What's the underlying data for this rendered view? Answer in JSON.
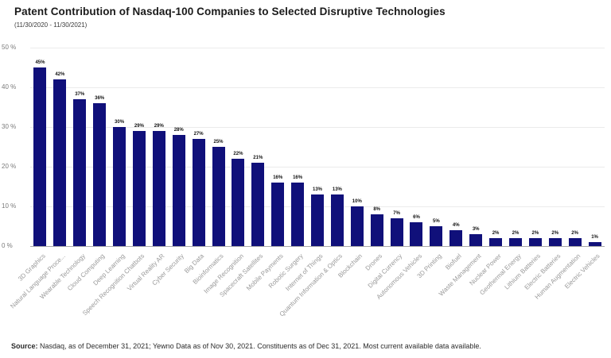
{
  "header": {
    "title": "Patent Contribution of Nasdaq-100 Companies to Selected Disruptive Technologies",
    "subtitle": "(11/30/2020 - 11/30/2021)"
  },
  "footer": {
    "source_label": "Source:",
    "source_text": " Nasdaq, as of December 31, 2021; Yewno Data as of Nov 30, 2021. Constituents as of Dec 31, 2021. Most current available data available."
  },
  "chart_data": {
    "type": "bar",
    "title": "Patent Contribution of Nasdaq-100 Companies to Selected Disruptive Technologies",
    "subtitle": "(11/30/2020 - 11/30/2021)",
    "categories": [
      "3D Graphics",
      "Natural Language Proce...",
      "Wearable Technology",
      "Cloud Computing",
      "Deep Learning",
      "Speech Recognition Chatbots",
      "Virtual Reality AR",
      "Cyber Security",
      "Big Data",
      "Bioinformatics",
      "Image Recognition",
      "Spacecraft Satellites",
      "Mobile Payments",
      "Robotic Surgery",
      "Internet of Things",
      "Quantum Information & Optics",
      "Blockchain",
      "Drones",
      "Digital Currency",
      "Autonomous Vehicles",
      "3D Printing",
      "Biofuel",
      "Waste Management",
      "Nuclear Power",
      "Geothermal Energy",
      "Lithium Batteries",
      "Electric Batteries",
      "Human Augmentation",
      "Electric Vehicles"
    ],
    "values": [
      45,
      42,
      37,
      36,
      30,
      29,
      29,
      28,
      27,
      25,
      22,
      21,
      16,
      16,
      13,
      13,
      10,
      8,
      7,
      6,
      5,
      4,
      3,
      2,
      2,
      2,
      2,
      2,
      1
    ],
    "value_labels": [
      "45%",
      "42%",
      "37%",
      "36%",
      "30%",
      "29%",
      "29%",
      "28%",
      "27%",
      "25%",
      "22%",
      "21%",
      "16%",
      "16%",
      "13%",
      "13%",
      "10%",
      "8%",
      "7%",
      "6%",
      "5%",
      "4%",
      "3%",
      "2%",
      "2%",
      "2%",
      "2%",
      "2%",
      "1%"
    ],
    "y_ticks": [
      "50 %",
      "40 %",
      "30 %",
      "20 %",
      "10 %",
      "0 %"
    ],
    "ylim": [
      0,
      50
    ],
    "xlabel": "",
    "ylabel": "",
    "grid": true,
    "legend": "none",
    "bar_color": "#10107a"
  }
}
